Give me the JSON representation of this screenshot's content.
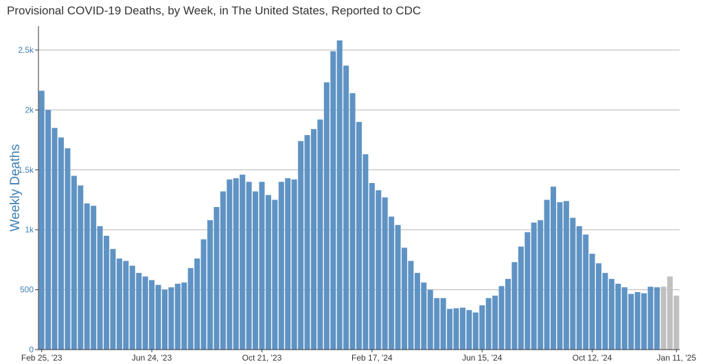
{
  "chart_data": {
    "type": "bar",
    "title": "Provisional COVID-19 Deaths, by Week, in The United States, Reported to CDC",
    "ylabel": "Weekly Deaths",
    "xlabel": "",
    "ylim": [
      0,
      2700
    ],
    "yticks": [
      {
        "value": 0,
        "label": "0"
      },
      {
        "value": 500,
        "label": "500"
      },
      {
        "value": 1000,
        "label": "1k"
      },
      {
        "value": 1500,
        "label": "1.5k"
      },
      {
        "value": 2000,
        "label": "2k"
      },
      {
        "value": 2500,
        "label": "2.5k"
      }
    ],
    "xticks": [
      {
        "index": 0,
        "label": "Feb 25, '23"
      },
      {
        "index": 17,
        "label": "Jun 24, '23"
      },
      {
        "index": 34,
        "label": "Oct 21, '23"
      },
      {
        "index": 51,
        "label": "Feb 17, '24"
      },
      {
        "index": 68,
        "label": "Jun 15, '24"
      },
      {
        "index": 85,
        "label": "Oct 12, '24"
      },
      {
        "index": 98,
        "label": "Jan 11, '25"
      }
    ],
    "grid": true,
    "colors": {
      "reported": "#5f93c4",
      "provisional": "#c0c0c0",
      "axis_text": "#3f7fb5",
      "grid": "#b4b4b4"
    },
    "provisional_from_index": 96,
    "values": [
      2160,
      2000,
      1850,
      1770,
      1680,
      1450,
      1370,
      1220,
      1200,
      1030,
      950,
      840,
      760,
      740,
      700,
      640,
      610,
      580,
      540,
      500,
      520,
      550,
      560,
      680,
      760,
      920,
      1080,
      1190,
      1320,
      1420,
      1430,
      1460,
      1400,
      1320,
      1400,
      1290,
      1250,
      1400,
      1430,
      1420,
      1740,
      1790,
      1840,
      1920,
      2230,
      2490,
      2580,
      2370,
      2140,
      1900,
      1630,
      1390,
      1330,
      1270,
      1110,
      1040,
      850,
      740,
      640,
      560,
      500,
      430,
      430,
      340,
      345,
      350,
      330,
      310,
      370,
      430,
      450,
      530,
      590,
      730,
      860,
      980,
      1060,
      1080,
      1250,
      1360,
      1230,
      1240,
      1100,
      1030,
      960,
      800,
      720,
      640,
      590,
      550,
      520,
      465,
      480,
      470,
      525,
      520,
      525,
      610,
      450
    ]
  }
}
